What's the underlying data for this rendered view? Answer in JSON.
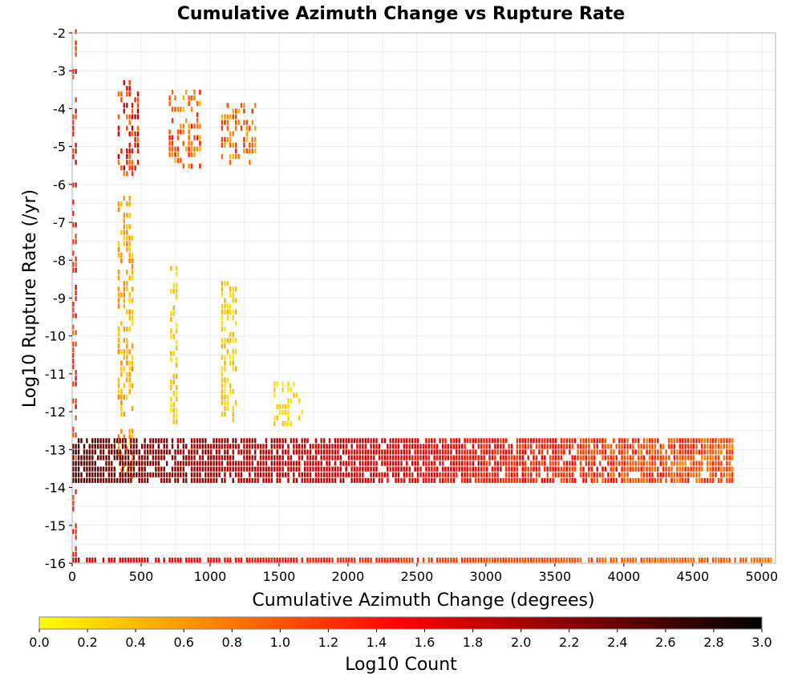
{
  "chart_data": {
    "type": "heatmap",
    "title": "Cumulative Azimuth Change vs Rupture Rate",
    "xlabel": "Cumulative Azimuth Change (degrees)",
    "ylabel": "Log10 Rupture Rate (/yr)",
    "xlim": [
      0,
      5100
    ],
    "ylim": [
      -16,
      -2
    ],
    "xticks": [
      "0",
      "500",
      "1000",
      "1500",
      "2000",
      "2500",
      "3000",
      "3500",
      "4000",
      "4500",
      "5000"
    ],
    "xtick_values": [
      0,
      500,
      1000,
      1500,
      2000,
      2500,
      3000,
      3500,
      4000,
      4500,
      5000
    ],
    "yticks": [
      "-2",
      "-3",
      "-4",
      "-5",
      "-6",
      "-7",
      "-8",
      "-9",
      "-10",
      "-11",
      "-12",
      "-13",
      "-14",
      "-15",
      "-16"
    ],
    "ytick_values": [
      -2,
      -3,
      -4,
      -5,
      -6,
      -7,
      -8,
      -9,
      -10,
      -11,
      -12,
      -13,
      -14,
      -15,
      -16
    ],
    "grid": true,
    "bin_size": {
      "x": 20,
      "y": 0.15
    },
    "colorbar": {
      "label": "Log10 Count",
      "range": [
        0,
        3
      ],
      "ticks": [
        "0.0",
        "0.2",
        "0.4",
        "0.6",
        "0.8",
        "1.0",
        "1.2",
        "1.4",
        "1.6",
        "1.8",
        "2.0",
        "2.2",
        "2.4",
        "2.6",
        "2.8",
        "3.0"
      ],
      "tick_values": [
        0,
        0.2,
        0.4,
        0.6,
        0.8,
        1.0,
        1.2,
        1.4,
        1.6,
        1.8,
        2.0,
        2.2,
        2.4,
        2.6,
        2.8,
        3.0
      ],
      "colors": [
        "#ffff00",
        "#ff8000",
        "#ff0000",
        "#800000",
        "#000000"
      ],
      "placement": "bottom"
    },
    "regions": [
      {
        "x": [
          0,
          30
        ],
        "y": [
          -16,
          -2
        ],
        "value": [
          0.9,
          1.6
        ]
      },
      {
        "x": [
          330,
          480
        ],
        "y": [
          -5.8,
          -3.3
        ],
        "value": [
          0.8,
          2.0
        ]
      },
      {
        "x": [
          330,
          450
        ],
        "y": [
          -13.8,
          -6.4
        ],
        "value": [
          0.2,
          0.8
        ]
      },
      {
        "x": [
          700,
          940
        ],
        "y": [
          -5.6,
          -3.6
        ],
        "value": [
          0.4,
          1.4
        ]
      },
      {
        "x": [
          710,
          760
        ],
        "y": [
          -12.5,
          -8.2
        ],
        "value": [
          0.1,
          0.5
        ]
      },
      {
        "x": [
          1080,
          1340
        ],
        "y": [
          -5.5,
          -3.9
        ],
        "value": [
          0.4,
          1.3
        ]
      },
      {
        "x": [
          1080,
          1200
        ],
        "y": [
          -12.3,
          -8.6
        ],
        "value": [
          0.1,
          0.5
        ]
      },
      {
        "x": [
          1460,
          1680
        ],
        "y": [
          -12.4,
          -11.3
        ],
        "value": [
          0.1,
          0.4
        ]
      },
      {
        "x": [
          0,
          4800
        ],
        "y": [
          -13.9,
          -12.7
        ],
        "value": [
          0.6,
          2.6
        ]
      },
      {
        "x": [
          0,
          5100
        ],
        "y": [
          -16.0,
          -15.9
        ],
        "value": [
          0.6,
          1.8
        ]
      }
    ]
  }
}
